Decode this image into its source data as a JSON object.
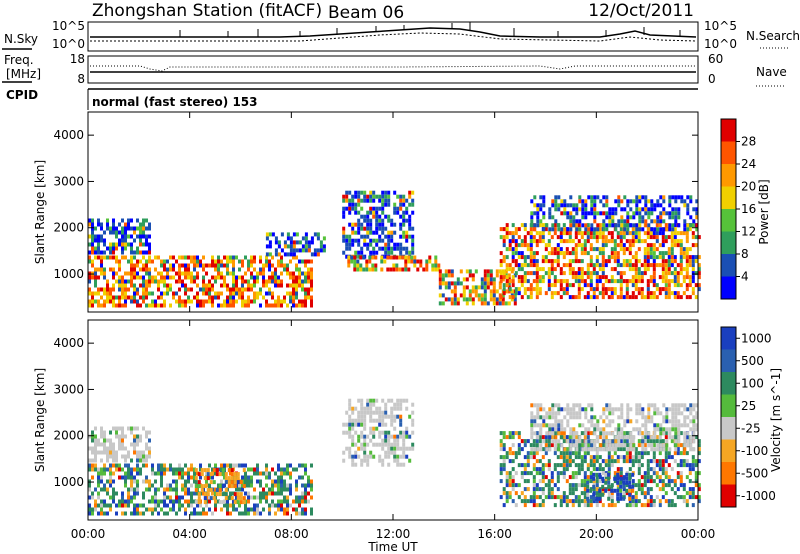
{
  "header": {
    "title": "Zhongshan Station (fitACF)",
    "beam": "Beam 06",
    "date": "12/Oct/2011"
  },
  "top_strip": {
    "left_label": "N.Sky",
    "right_label": "N.Search",
    "left_ticks": [
      "10^5",
      "10^0"
    ],
    "right_ticks": [
      "10^5",
      "10^0"
    ]
  },
  "freq_strip": {
    "left_label_1": "Freq.",
    "left_label_2": "[MHz]",
    "left_ticks": [
      "18",
      "8"
    ],
    "right_label": "Nave",
    "right_ticks": [
      "60",
      "0"
    ]
  },
  "cpid": {
    "label": "CPID",
    "text": "normal (fast stereo) 153"
  },
  "colors": {
    "power_scale": [
      "#0000ff",
      "#1a4fb4",
      "#2f9e5c",
      "#56c23a",
      "#f0d000",
      "#ff9900",
      "#ff5500",
      "#e00000"
    ],
    "velocity_scale": [
      "#1a3fbf",
      "#2a60b0",
      "#2d8a5f",
      "#55bb3c",
      "#c8c8c8",
      "#f5a623",
      "#ff7700",
      "#e00000"
    ]
  },
  "chart_data": [
    {
      "type": "heatmap",
      "title": "",
      "xlabel": "Time UT",
      "ylabel": "Slant Range [km]",
      "xticks": [
        "00:00",
        "04:00",
        "08:00",
        "12:00",
        "16:00",
        "20:00",
        "00:00"
      ],
      "yticks": [
        "1000",
        "2000",
        "3000",
        "4000"
      ],
      "xlim": [
        0,
        24
      ],
      "ylim": [
        180,
        4500
      ],
      "colorbar": {
        "label": "Power [dB]",
        "ticks": [
          "4",
          "8",
          "12",
          "16",
          "20",
          "24",
          "28"
        ],
        "range": [
          0,
          30
        ]
      },
      "echo_regions": [
        {
          "t": [
            0.0,
            8.8
          ],
          "r": [
            300,
            1400
          ],
          "level": "high"
        },
        {
          "t": [
            0.0,
            2.4
          ],
          "r": [
            1500,
            2200
          ],
          "level": "low"
        },
        {
          "t": [
            7.0,
            9.3
          ],
          "r": [
            1400,
            1900
          ],
          "level": "low"
        },
        {
          "t": [
            10.0,
            12.8
          ],
          "r": [
            1400,
            2800
          ],
          "level": "low"
        },
        {
          "t": [
            10.2,
            13.8
          ],
          "r": [
            1100,
            1400
          ],
          "level": "mid"
        },
        {
          "t": [
            13.8,
            16.8
          ],
          "r": [
            400,
            1100
          ],
          "level": "mid"
        },
        {
          "t": [
            16.2,
            24.0
          ],
          "r": [
            500,
            2100
          ],
          "level": "high"
        },
        {
          "t": [
            17.4,
            24.0
          ],
          "r": [
            2000,
            2700
          ],
          "level": "low"
        }
      ]
    },
    {
      "type": "heatmap",
      "title": "",
      "xlabel": "Time UT",
      "ylabel": "Slant Range [km]",
      "xticks": [
        "00:00",
        "04:00",
        "08:00",
        "12:00",
        "16:00",
        "20:00",
        "00:00"
      ],
      "yticks": [
        "1000",
        "2000",
        "3000",
        "4000"
      ],
      "xlim": [
        0,
        24
      ],
      "ylim": [
        180,
        4500
      ],
      "colorbar": {
        "label": "Velocity [m s^-1]",
        "ticks": [
          "1000",
          "500",
          "100",
          "25",
          "-25",
          "-100",
          "-500",
          "-1000"
        ],
        "range": [
          -1000,
          1000
        ]
      },
      "echo_regions": [
        {
          "t": [
            0.0,
            8.8
          ],
          "r": [
            300,
            1400
          ],
          "level": "mixed"
        },
        {
          "t": [
            4.2,
            6.2
          ],
          "r": [
            600,
            1300
          ],
          "level": "negative"
        },
        {
          "t": [
            0.0,
            2.4
          ],
          "r": [
            1500,
            2200
          ],
          "level": "near-zero"
        },
        {
          "t": [
            10.0,
            12.8
          ],
          "r": [
            1400,
            2800
          ],
          "level": "near-zero"
        },
        {
          "t": [
            16.2,
            24.0
          ],
          "r": [
            500,
            2100
          ],
          "level": "mixed"
        },
        {
          "t": [
            19.6,
            21.4
          ],
          "r": [
            600,
            1200
          ],
          "level": "positive"
        },
        {
          "t": [
            17.4,
            24.0
          ],
          "r": [
            1700,
            2700
          ],
          "level": "near-zero"
        }
      ]
    }
  ]
}
